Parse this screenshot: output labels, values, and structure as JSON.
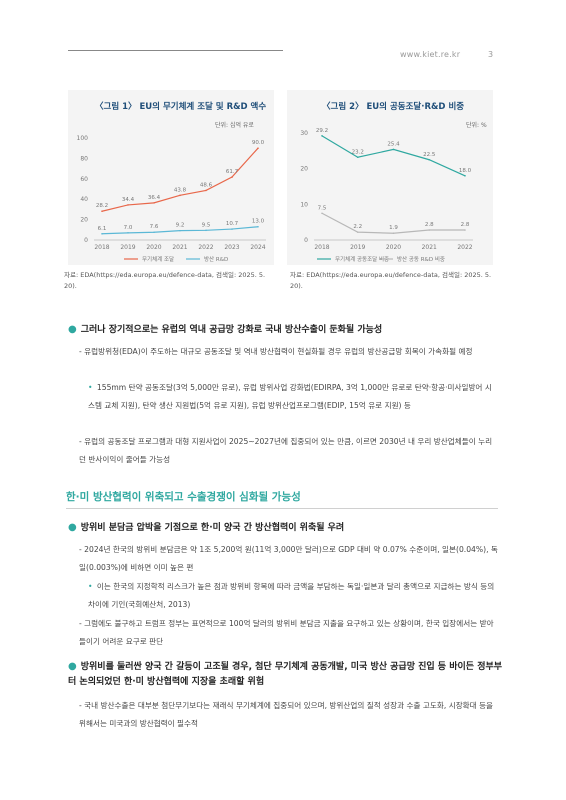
{
  "header": {
    "site": "www.kiet.re.kr",
    "page": "3"
  },
  "figure1": {
    "title": "〈그림 1〉 EU의 무기체계 조달 및 R&D 액수",
    "unit": "단위: 십억 유로",
    "source": "자료: EDA(https://eda.europa.eu/defence-data, 검색일: 2025. 5. 20).",
    "chart_data": {
      "type": "line",
      "x": [
        "2018",
        "2019",
        "2020",
        "2021",
        "2022",
        "2023",
        "2024"
      ],
      "ylim": [
        0,
        100
      ],
      "yticks": [
        "0",
        "20",
        "40",
        "60",
        "80",
        "100"
      ],
      "series": [
        {
          "name": "무기체계 조달",
          "color": "#e8674a",
          "values": [
            28.2,
            34.4,
            36.4,
            43.8,
            48.6,
            61.7,
            90.0
          ],
          "labels": [
            "28.2",
            "34.4",
            "36.4",
            "43.8",
            "48.6",
            "61.7",
            "90.0"
          ]
        },
        {
          "name": "방산 R&D",
          "color": "#5bb8d6",
          "values": [
            6.1,
            7.0,
            7.6,
            9.2,
            9.5,
            10.7,
            13.0
          ],
          "labels": [
            "6.1",
            "7.0",
            "7.6",
            "9.2",
            "9.5",
            "10.7",
            "13.0"
          ]
        }
      ]
    }
  },
  "figure2": {
    "title": "〈그림 2〉 EU의 공동조달·R&D 비중",
    "unit": "단위: %",
    "source": "자료: EDA(https://eda.europa.eu/defence-data, 검색일: 2025. 5. 20).",
    "chart_data": {
      "type": "line",
      "x": [
        "2018",
        "2019",
        "2020",
        "2021",
        "2022"
      ],
      "ylim": [
        0,
        30
      ],
      "yticks": [
        "0",
        "10",
        "20",
        "30"
      ],
      "series": [
        {
          "name": "무기체계 공동조달 비중",
          "color": "#2fa8a0",
          "values": [
            29.2,
            23.2,
            25.4,
            22.5,
            18.0
          ],
          "labels": [
            "29.2",
            "23.2",
            "25.4",
            "22.5",
            "18.0"
          ]
        },
        {
          "name": "방산 공동 R&D 비중",
          "color": "#b8b8b8",
          "values": [
            7.5,
            2.2,
            1.9,
            2.8,
            2.8
          ],
          "labels": [
            "7.5",
            "2.2",
            "1.9",
            "2.8",
            "2.8"
          ]
        }
      ]
    }
  },
  "body": {
    "p1": "그러나 장기적으로는 유럽의 역내 공급망 강화로 국내 방산수출이 둔화될 가능성",
    "p2": "- 유럽방위청(EDA)이 주도하는 대규모 공동조달 및 역내 방산협력이 현실화될 경우 유럽의 방산공급망 회복이 가속화될 예정",
    "p3": "155mm 탄약 공동조달(3억 5,000만 유로), 유럽 방위사업 강화법(EDIRPA, 3억 1,000만 유로로 탄약·항공·미사일방어 시스템 교체 지원), 탄약 생산 지원법(5억 유로 지원), 유럽 방위산업프로그램(EDIP, 15억 유로 지원) 등",
    "p4": "- 유럽의 공동조달 프로그램과 대형 지원사업이 2025~2027년에 집중되어 있는 만큼, 이르면 2030년 내 우리 방산업체들이 누리던 반사이익이 줄어들 가능성",
    "section": "한·미 방산협력이 위축되고 수출경쟁이 심화될 가능성",
    "p5": "방위비 분담금 압박을 기점으로 한·미 양국 간 방산협력이 위축될 우려",
    "p6": "- 2024년 한국의 방위비 분담금은 약 1조 5,200억 원(11억 3,000만 달러)으로 GDP 대비 약 0.07% 수준이며, 일본(0.04%), 독일(0.003%)에 비하면 이미 높은 편",
    "p7": "이는 한국의 지정학적 리스크가 높은 점과 방위비 항목에 따라 금액을 부담하는 독일·일본과 달리 총액으로 지급하는 방식 등의 차이에 기인(국회예산처, 2013)",
    "p8": "- 그럼에도 불구하고 트럼프 정부는 표면적으로 100억 달러의 방위비 분담금 지출을 요구하고 있는 상황이며, 한국 입장에서는 받아들이기 어려운 요구로 판단",
    "p9": "방위비를 둘러싼 양국 간 갈등이 고조될 경우, 첨단 무기체계 공동개발, 미국 방산 공급망 진입 등 바이든 정부부터 논의되었던 한·미 방산협력에 지장을 초래할 위험",
    "p10": "- 국내 방산수출은 대부분 첨단무기보다는 재래식 무기체계에 집중되어 있으며, 방위산업의 질적 성장과 수출 고도화, 시장확대 등을 위해서는 미국과의 방산협력이 필수적"
  }
}
